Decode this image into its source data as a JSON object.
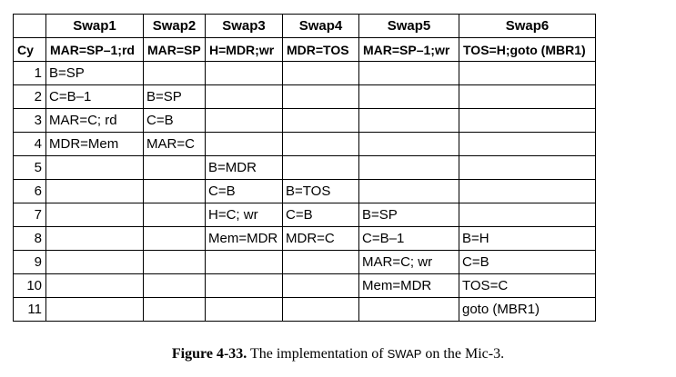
{
  "table": {
    "corner": "",
    "columns": [
      "Swap1",
      "Swap2",
      "Swap3",
      "Swap4",
      "Swap5",
      "Swap6"
    ],
    "subheader": [
      "Cy",
      "MAR=SP–1;rd",
      "MAR=SP",
      "H=MDR;wr",
      "MDR=TOS",
      "MAR=SP–1;wr",
      "TOS=H;goto (MBR1)"
    ],
    "rows": [
      [
        "1",
        "B=SP",
        "",
        "",
        "",
        "",
        ""
      ],
      [
        "2",
        "C=B–1",
        "B=SP",
        "",
        "",
        "",
        ""
      ],
      [
        "3",
        "MAR=C; rd",
        "C=B",
        "",
        "",
        "",
        ""
      ],
      [
        "4",
        "MDR=Mem",
        "MAR=C",
        "",
        "",
        "",
        ""
      ],
      [
        "5",
        "",
        "",
        "B=MDR",
        "",
        "",
        ""
      ],
      [
        "6",
        "",
        "",
        "C=B",
        "B=TOS",
        "",
        ""
      ],
      [
        "7",
        "",
        "",
        "H=C; wr",
        "C=B",
        "B=SP",
        ""
      ],
      [
        "8",
        "",
        "",
        "Mem=MDR",
        "MDR=C",
        "C=B–1",
        "B=H"
      ],
      [
        "9",
        "",
        "",
        "",
        "",
        "MAR=C; wr",
        "C=B"
      ],
      [
        "10",
        "",
        "",
        "",
        "",
        "Mem=MDR",
        "TOS=C"
      ],
      [
        "11",
        "",
        "",
        "",
        "",
        "",
        "goto (MBR1)"
      ]
    ]
  },
  "caption": {
    "label": "Figure 4-33.",
    "text_before": "The implementation of ",
    "code": "SWAP",
    "text_after": " on the Mic-3."
  }
}
